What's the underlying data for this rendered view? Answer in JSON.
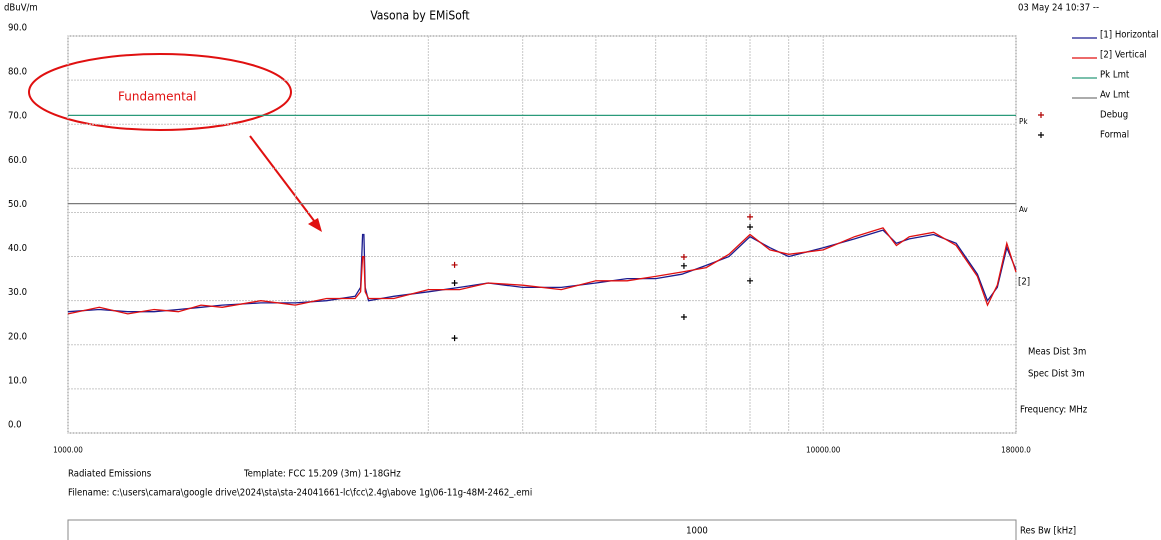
{
  "chart_data": {
    "type": "line",
    "title": "Vasona by EMiSoft",
    "y_label": "dBuV/m",
    "timestamp": "03 May 24 10:37 --",
    "xlog": true,
    "xlim": [
      1000,
      18000
    ],
    "ylim": [
      0,
      90
    ],
    "xticks": [
      {
        "value": 1000,
        "label": "1000.00"
      },
      {
        "value": 10000,
        "label": "10000.00"
      },
      {
        "value": 18000,
        "label": "18000.0"
      }
    ],
    "xgrid": [
      2000,
      3000,
      4000,
      5000,
      6000,
      7000,
      8000,
      9000
    ],
    "yticks": [
      {
        "value": 0,
        "label": "0.0"
      },
      {
        "value": 10,
        "label": "10.0"
      },
      {
        "value": 20,
        "label": "20.0"
      },
      {
        "value": 30,
        "label": "30.0"
      },
      {
        "value": 40,
        "label": "40.0"
      },
      {
        "value": 50,
        "label": "50.0"
      },
      {
        "value": 60,
        "label": "60.0"
      },
      {
        "value": 70,
        "label": "70.0"
      },
      {
        "value": 80,
        "label": "80.0"
      },
      {
        "value": 90,
        "label": "90.0"
      }
    ],
    "grid": true,
    "legend": "right",
    "series": [
      {
        "name": "[1] Horizontal",
        "type": "line",
        "color": "#1c1c8f",
        "x": [
          1000,
          1100,
          1200,
          1300,
          1400,
          1500,
          1600,
          1800,
          2000,
          2200,
          2400,
          2440,
          2455,
          2465,
          2475,
          2500,
          2700,
          3000,
          3300,
          3600,
          4000,
          4500,
          5000,
          5500,
          6000,
          6500,
          7000,
          7500,
          8000,
          8500,
          9000,
          10000,
          11000,
          12000,
          12500,
          13000,
          14000,
          15000,
          16000,
          16500,
          17000,
          17500,
          18000
        ],
        "values": [
          27.5,
          28,
          27.5,
          27.5,
          28,
          28.5,
          29,
          29.5,
          29.5,
          30,
          31,
          33,
          45,
          45,
          33,
          30,
          31,
          32,
          33,
          34,
          33,
          33,
          34,
          35,
          35,
          36,
          38,
          40,
          44.5,
          42,
          40,
          42,
          44,
          46,
          43,
          44,
          45,
          43,
          36,
          30,
          33,
          42,
          37
        ]
      },
      {
        "name": "[2] Vertical",
        "type": "line",
        "color": "#e01010",
        "x": [
          1000,
          1100,
          1200,
          1300,
          1400,
          1500,
          1600,
          1800,
          2000,
          2200,
          2400,
          2440,
          2455,
          2465,
          2475,
          2500,
          2700,
          3000,
          3300,
          3600,
          4000,
          4500,
          5000,
          5500,
          6000,
          6500,
          7000,
          7500,
          8000,
          8500,
          9000,
          10000,
          11000,
          12000,
          12500,
          13000,
          14000,
          15000,
          16000,
          16500,
          17000,
          17500,
          18000
        ],
        "values": [
          27,
          28.5,
          27,
          28,
          27.5,
          29,
          28.5,
          30,
          29,
          30.5,
          30.5,
          32,
          40,
          40,
          32,
          30.5,
          30.5,
          32.5,
          32.5,
          34,
          33.5,
          32.5,
          34.5,
          34.5,
          35.5,
          36.5,
          37.5,
          40.5,
          45,
          41.5,
          40.5,
          41.5,
          44.5,
          46.5,
          42.5,
          44.5,
          45.5,
          42.5,
          35.5,
          29,
          33.5,
          43,
          36.5
        ]
      },
      {
        "name": "Pk Lmt",
        "type": "line",
        "color": "#2a9a7a",
        "tag": "Pk",
        "x": [
          1000,
          18000
        ],
        "values": [
          72,
          72
        ]
      },
      {
        "name": "Av Lmt",
        "type": "line",
        "color": "#7a7a7a",
        "tag": "Av",
        "x": [
          1000,
          18000
        ],
        "values": [
          52,
          52
        ]
      },
      {
        "name": "Debug",
        "type": "scatter",
        "color": "#b00000",
        "x": [
          3250,
          6540,
          8000
        ],
        "values": [
          38.1,
          39.9,
          49.0
        ]
      },
      {
        "name": "Formal",
        "type": "scatter",
        "color": "#000000",
        "x": [
          3250,
          3250,
          6540,
          6540,
          8000,
          8000
        ],
        "values": [
          34.0,
          21.5,
          37.9,
          26.3,
          46.7,
          34.5
        ]
      }
    ],
    "trace_tag": "[2]",
    "annotation": "Fundamental",
    "notes": [
      "Meas Dist 3m",
      "Spec Dist 3m",
      "Frequency: MHz"
    ],
    "footer": {
      "test": "Radiated Emissions",
      "template": "Template: FCC 15.209 (3m) 1-18GHz",
      "filename": "Filename: c:\\users\\camara\\google drive\\2024\\sta\\sta-24041661-lc\\fcc\\2.4g\\above 1g\\06-11g-48M-2462_.emi"
    },
    "res_bw": {
      "value": 1000,
      "label": "Res Bw [kHz]"
    }
  }
}
